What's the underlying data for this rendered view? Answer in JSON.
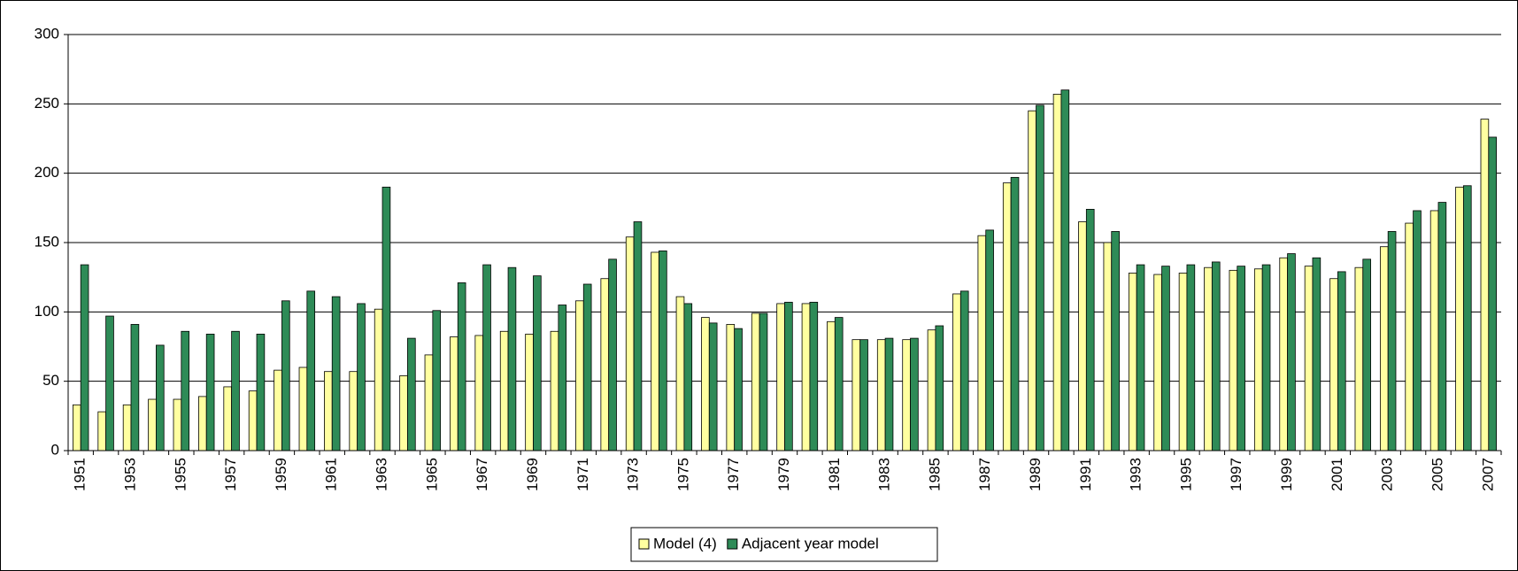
{
  "chart_data": {
    "type": "bar",
    "categories": [
      "1951",
      null,
      "1953",
      null,
      "1955",
      null,
      "1957",
      null,
      "1959",
      null,
      "1961",
      null,
      "1963",
      null,
      "1965",
      null,
      "1967",
      null,
      "1969",
      null,
      "1971",
      null,
      "1973",
      null,
      "1975",
      null,
      "1977",
      null,
      "1979",
      null,
      "1981",
      null,
      "1983",
      null,
      "1985",
      null,
      "1987",
      null,
      "1989",
      null,
      "1991",
      null,
      "1993",
      null,
      "1995",
      null,
      "1997",
      null,
      "1999",
      null,
      "2001",
      null,
      "2003",
      null,
      "2005",
      null,
      "2007"
    ],
    "series": [
      {
        "name": "Model (4)",
        "color": "#ffffa0",
        "values": [
          33,
          28,
          33,
          37,
          37,
          39,
          46,
          43,
          58,
          60,
          57,
          57,
          102,
          54,
          69,
          82,
          83,
          86,
          84,
          86,
          108,
          124,
          154,
          143,
          111,
          96,
          91,
          99,
          106,
          106,
          93,
          80,
          80,
          80,
          87,
          113,
          155,
          193,
          245,
          257,
          165,
          150,
          128,
          127,
          128,
          132,
          130,
          131,
          139,
          133,
          124,
          132,
          147,
          164,
          173,
          190,
          239
        ]
      },
      {
        "name": "Adjacent year model",
        "color": "#2e8b57",
        "values": [
          134,
          97,
          91,
          76,
          86,
          84,
          86,
          84,
          108,
          115,
          111,
          106,
          190,
          81,
          101,
          121,
          134,
          132,
          126,
          105,
          120,
          138,
          165,
          144,
          106,
          92,
          88,
          99,
          107,
          107,
          96,
          80,
          81,
          81,
          90,
          115,
          159,
          197,
          249,
          260,
          174,
          158,
          134,
          133,
          134,
          136,
          133,
          134,
          142,
          139,
          129,
          138,
          158,
          173,
          179,
          191,
          226
        ]
      }
    ],
    "ylim": [
      0,
      300
    ],
    "yticks": [
      0,
      50,
      100,
      150,
      200,
      250,
      300
    ],
    "grid": true,
    "legend": "bottom"
  }
}
